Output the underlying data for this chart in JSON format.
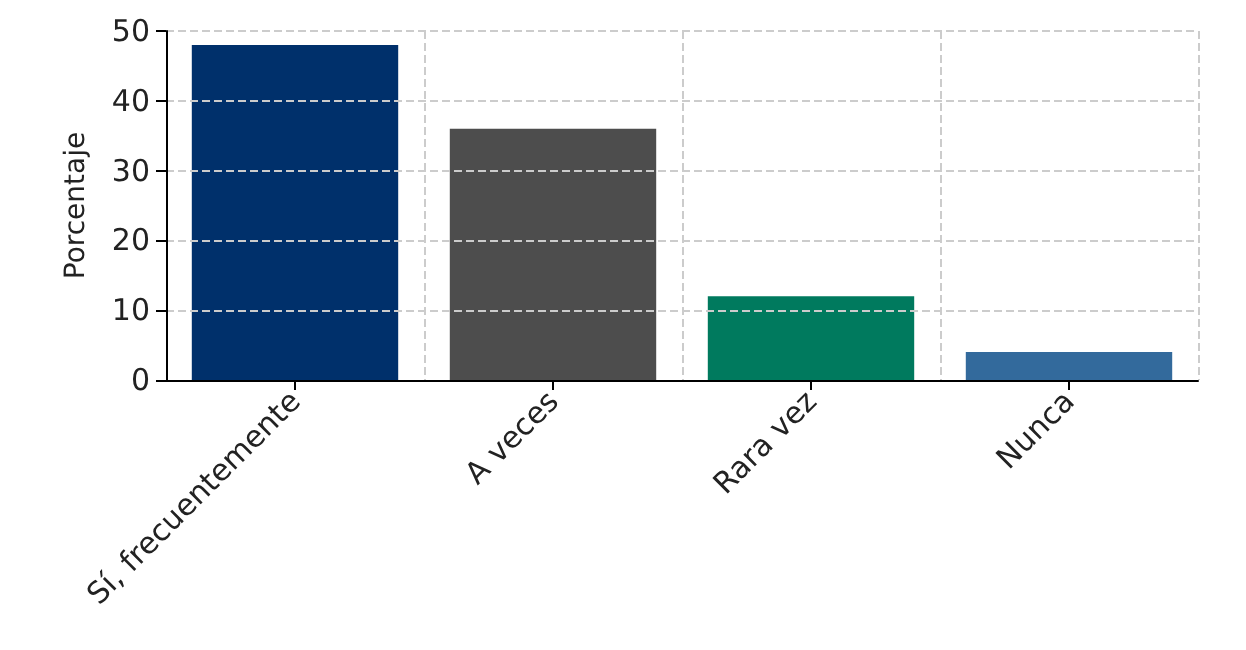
{
  "chart_data": {
    "type": "bar",
    "ylabel": "Porcentaje",
    "categories": [
      "Sí, frecuentemente",
      "A veces",
      "Rara vez",
      "Nunca"
    ],
    "values": [
      48,
      36,
      12,
      4
    ],
    "colors": [
      "#00306b",
      "#4d4d4d",
      "#007a5e",
      "#336a9c"
    ],
    "ylim": [
      0,
      50
    ],
    "yticks": [
      0,
      10,
      20,
      30,
      40,
      50
    ],
    "grid": true
  }
}
